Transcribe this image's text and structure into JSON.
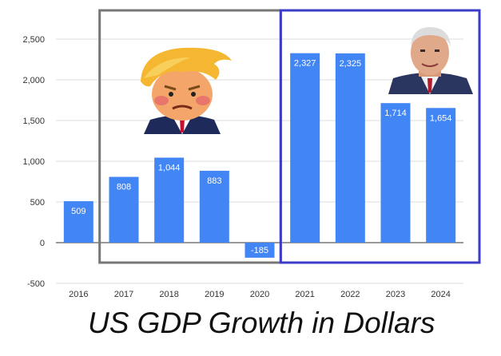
{
  "chart_data": {
    "type": "bar",
    "title": "US GDP Growth in Dollars",
    "xlabel": "",
    "ylabel": "",
    "categories": [
      "2016",
      "2017",
      "2018",
      "2019",
      "2020",
      "2021",
      "2022",
      "2023",
      "2024"
    ],
    "values": [
      509,
      808,
      1044,
      883,
      -185,
      2327,
      2325,
      1714,
      1654
    ],
    "data_labels": [
      "509",
      "808",
      "1,044",
      "883",
      "-185",
      "2,327",
      "2,325",
      "1,714",
      "1,654"
    ],
    "ylim": [
      -500,
      2500
    ],
    "yticks": [
      -500,
      0,
      500,
      1000,
      1500,
      2000,
      2500
    ],
    "ytick_labels": [
      "-500",
      "0",
      "500",
      "1,000",
      "1,500",
      "2,000",
      "2,500"
    ],
    "grid": true,
    "legend": "none",
    "bar_color": "#4285f4",
    "groups": [
      {
        "categories": [
          "2017",
          "2018",
          "2019",
          "2020"
        ],
        "box_color": "#777777",
        "portrait": "cartoon-man-blond-hair"
      },
      {
        "categories": [
          "2021",
          "2022",
          "2023",
          "2024"
        ],
        "box_color": "#3c3cc8",
        "portrait": "pixel-man-white-hair"
      }
    ]
  }
}
